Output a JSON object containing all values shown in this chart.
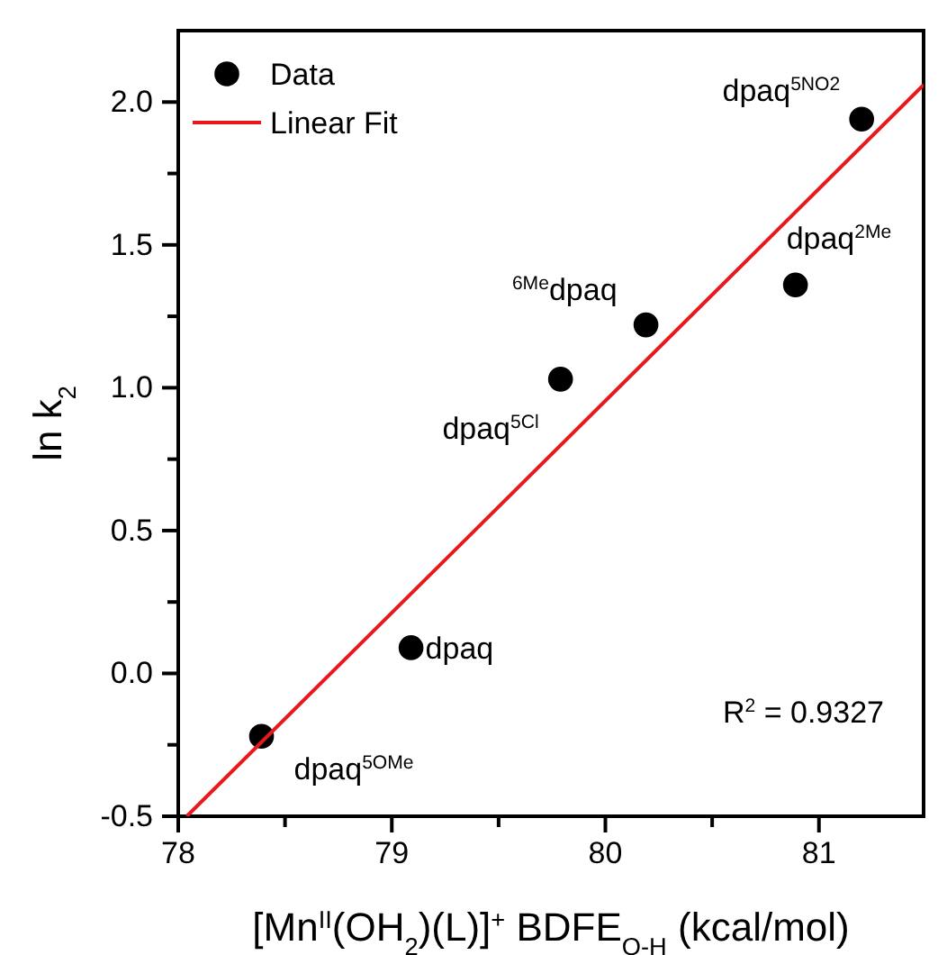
{
  "chart_data": {
    "type": "scatter",
    "xlabel": "[Mn$^{II}$(OH$_{2}$)(L)]$^{+}$ BDFE$_{O-H}$ (kcal/mol)",
    "ylabel": "ln k$_{2}$",
    "xlim": [
      78,
      81.49
    ],
    "ylim": [
      -0.5,
      2.25
    ],
    "xticks": [
      78,
      {
        "value": 78.5,
        "label": null
      },
      79,
      {
        "value": 79.5,
        "label": null
      },
      80,
      {
        "value": 80.5,
        "label": null
      },
      81
    ],
    "yticks": [
      {
        "value": -0.5,
        "label": "-0.5"
      },
      {
        "value": -0.25,
        "label": null
      },
      {
        "value": 0,
        "label": "0.0"
      },
      {
        "value": 0.25,
        "label": null
      },
      {
        "value": 0.5,
        "label": "0.5"
      },
      {
        "value": 0.75,
        "label": null
      },
      {
        "value": 1,
        "label": "1.0"
      },
      {
        "value": 1.25,
        "label": null
      },
      {
        "value": 1.5,
        "label": "1.5"
      },
      {
        "value": 1.75,
        "label": null
      },
      {
        "value": 2,
        "label": "2.0"
      }
    ],
    "legend": "top left",
    "marker": "circle",
    "grid": false,
    "series": [
      {
        "name": "Data",
        "color": "#000000",
        "x": [
          78.39,
          79.09,
          79.79,
          80.19,
          80.89,
          81.2
        ],
        "values": [
          -0.22,
          0.09,
          1.03,
          1.22,
          1.36,
          1.94
        ]
      },
      {
        "name": "Linear Fit",
        "type": "line",
        "marker": "none",
        "color": "#e8191c",
        "x": [
          78.04,
          81.49
        ],
        "values": [
          -0.5,
          2.06
        ]
      }
    ],
    "annotations": [
      {
        "text": "dpaq$^{5OMe}$",
        "x": 78.39,
        "y": -0.22
      },
      {
        "text": "dpaq",
        "x": 79.09,
        "y": 0.09
      },
      {
        "text": "dpaq$^{5Cl}$",
        "x": 79.79,
        "y": 1.03
      },
      {
        "text": "$^{6Me}$dpaq",
        "x": 80.19,
        "y": 1.22
      },
      {
        "text": "dpaq$^{2Me}$",
        "x": 80.89,
        "y": 1.36
      },
      {
        "text": "dpaq$^{5NO2}$",
        "x": 81.2,
        "y": 1.94
      },
      "R$^{2}$ = 0.9327"
    ]
  }
}
